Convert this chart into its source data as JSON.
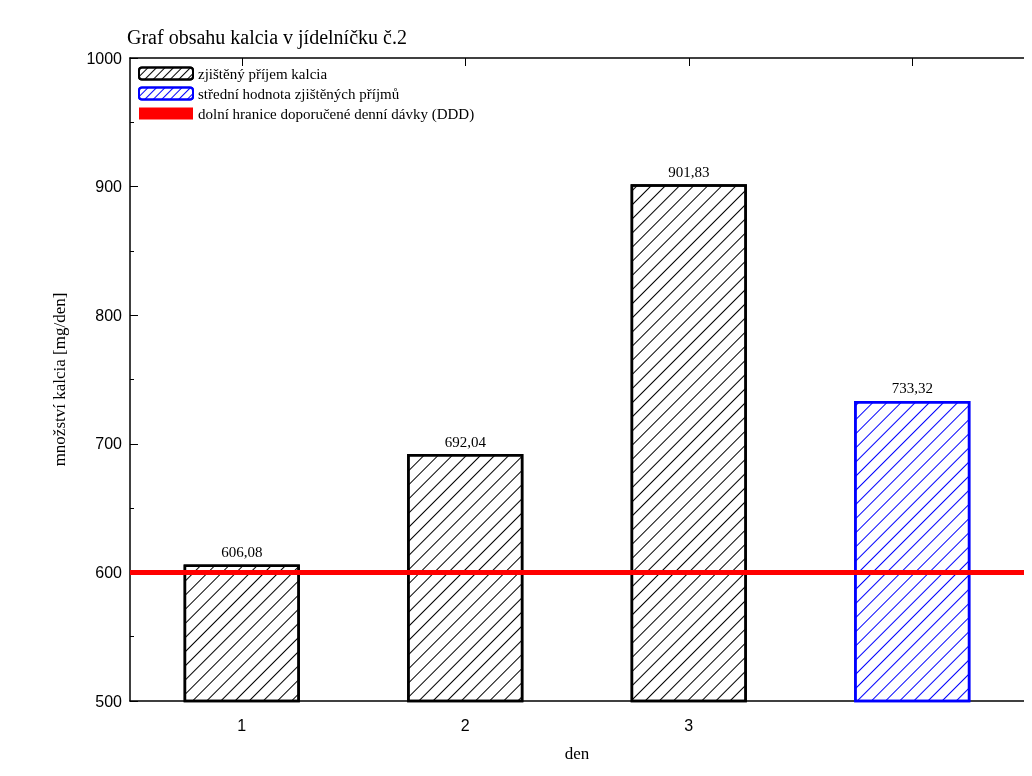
{
  "chart_data": {
    "type": "bar",
    "title": "Graf obsahu kalcia v jídelníčku č.2",
    "xlabel": "den",
    "ylabel": "množství kalcia [mg/den]",
    "categories": [
      "1",
      "2",
      "3",
      null
    ],
    "series": [
      {
        "name": "zjištěný příjem kalcia",
        "color": "#000000",
        "values": [
          606.08,
          692.04,
          901.83,
          null
        ],
        "value_labels": [
          "606,08",
          "692,04",
          "901,83",
          null
        ]
      },
      {
        "name": "střední hodnota zjištěných příjmů",
        "color": "#0000ff",
        "values": [
          null,
          null,
          null,
          733.32
        ],
        "value_labels": [
          null,
          null,
          null,
          "733,32"
        ]
      }
    ],
    "ref_lines": [
      {
        "axis": "y",
        "value": 600,
        "label": "dolní hranice doporučené denní dávky (DDD)",
        "color": "#ff0000"
      }
    ],
    "ylim": [
      500,
      1000
    ],
    "yticks": [
      500,
      600,
      700,
      800,
      900,
      1000
    ],
    "grid": false,
    "legend": "top left"
  }
}
